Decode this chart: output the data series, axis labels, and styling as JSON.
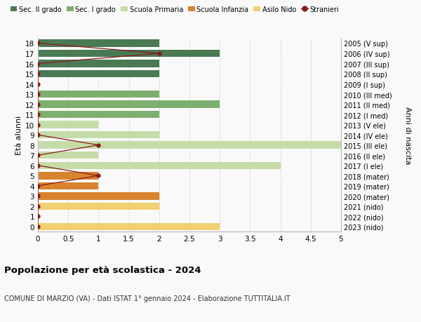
{
  "ages": [
    18,
    17,
    16,
    15,
    14,
    13,
    12,
    11,
    10,
    9,
    8,
    7,
    6,
    5,
    4,
    3,
    2,
    1,
    0
  ],
  "years": [
    "2005 (V sup)",
    "2006 (IV sup)",
    "2007 (III sup)",
    "2008 (II sup)",
    "2009 (I sup)",
    "2010 (III med)",
    "2011 (II med)",
    "2012 (I med)",
    "2013 (V ele)",
    "2014 (IV ele)",
    "2015 (III ele)",
    "2016 (II ele)",
    "2017 (I ele)",
    "2018 (mater)",
    "2019 (mater)",
    "2020 (mater)",
    "2021 (nido)",
    "2022 (nido)",
    "2023 (nido)"
  ],
  "bar_values": [
    2,
    3,
    2,
    2,
    0,
    2,
    3,
    2,
    1,
    2,
    5,
    1,
    4,
    1,
    1,
    2,
    2,
    0,
    3
  ],
  "bar_colors": [
    "#4a7a54",
    "#4a7a54",
    "#4a7a54",
    "#4a7a54",
    "#4a7a54",
    "#7daf6e",
    "#7daf6e",
    "#7daf6e",
    "#c5dca8",
    "#c5dca8",
    "#c5dca8",
    "#c5dca8",
    "#c5dca8",
    "#d8832e",
    "#d8832e",
    "#d8832e",
    "#f0d070",
    "#f0d070",
    "#f0d070"
  ],
  "stranieri_x": [
    0,
    2,
    0,
    0,
    0,
    0,
    0,
    0,
    0,
    0,
    1,
    0,
    0,
    1,
    0,
    0,
    0,
    0,
    0
  ],
  "color_sec2": "#4a7a54",
  "color_sec1": "#7daf6e",
  "color_primaria": "#c5dca8",
  "color_infanzia": "#d8832e",
  "color_nido": "#f0d070",
  "color_stranieri": "#8b1a1a",
  "xlim": [
    0,
    5.0
  ],
  "xticks": [
    0,
    0.5,
    1.0,
    1.5,
    2.0,
    2.5,
    3.0,
    3.5,
    4.0,
    4.5,
    5.0
  ],
  "title": "Popolazione per età scolastica - 2024",
  "subtitle": "COMUNE DI MARZIO (VA) - Dati ISTAT 1° gennaio 2024 - Elaborazione TUTTITALIA.IT",
  "ylabel_left": "Età alunni",
  "ylabel_right": "Anni di nascita",
  "bg_color": "#f9f9f9",
  "grid_color": "#cccccc"
}
